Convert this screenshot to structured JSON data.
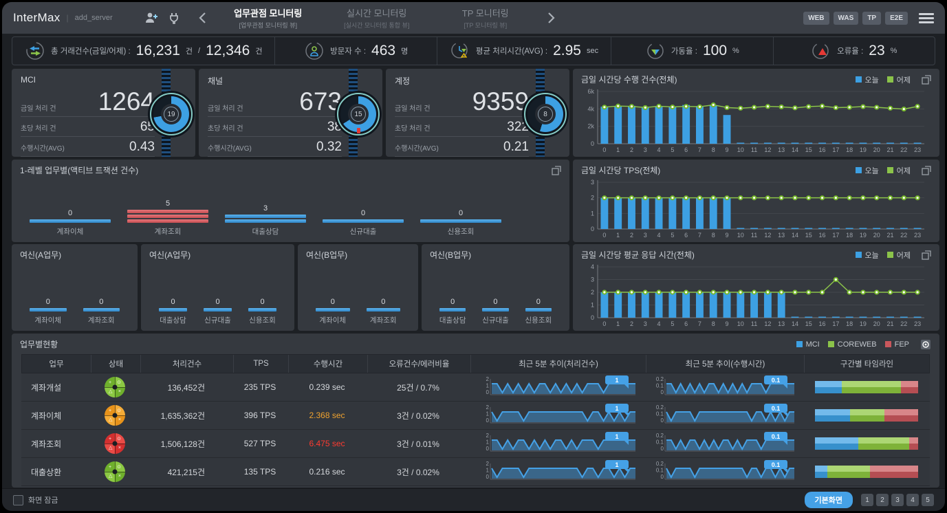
{
  "colors": {
    "accent_blue": "#3da0e3",
    "accent_green": "#8bc34a",
    "accent_red": "#c9575c",
    "accent_orange": "#f0a32f",
    "alert_red": "#ff3b30"
  },
  "header": {
    "logo": "InterMax",
    "divider": "|",
    "workspace": "add_server",
    "tabs": [
      {
        "label": "업무관점 모니터링",
        "sub": "[업무관점 모니터링 뷰]",
        "active": true
      },
      {
        "label": "실시간 모니터링",
        "sub": "[실시간 모니터링 통합 뷰]",
        "active": false
      },
      {
        "label": "TP 모니터링",
        "sub": "[TP 모니터링 뷰]",
        "active": false
      }
    ],
    "right_buttons": [
      "WEB",
      "WAS",
      "TP",
      "E2E"
    ]
  },
  "kpis": [
    {
      "icon": "transfer-arrows-icon",
      "label": "총 거래건수(금일/어제) :",
      "v1": "16,231",
      "u1": "건",
      "sep": "/",
      "v2": "12,346",
      "u2": "건"
    },
    {
      "icon": "visitor-icon",
      "label": "방문자 수 :",
      "v1": "463",
      "u1": "명"
    },
    {
      "icon": "avg-time-icon",
      "label": "평균 처리시간(AVG) :",
      "v1": "2.95",
      "u1": "sec"
    },
    {
      "icon": "uptime-icon",
      "label": "가동율 :",
      "v1": "100",
      "u1": "%"
    },
    {
      "icon": "error-rate-icon",
      "label": "오류율 :",
      "v1": "23",
      "u1": "%"
    }
  ],
  "gauges": [
    {
      "title": "MCI",
      "today_label": "금일 처리 건",
      "today": "1264",
      "persec_label": "초당 처리 건",
      "persec": "65",
      "avg_label": "수행시간(AVG)",
      "avg": "0.43",
      "gauge": "19",
      "gauge_pct": 72,
      "alert": false
    },
    {
      "title": "채널",
      "today_label": "금일 처리 건",
      "today": "673",
      "persec_label": "초당 처리 건",
      "persec": "38",
      "avg_label": "수행시간(AVG)",
      "avg": "0.32",
      "gauge": "15",
      "gauge_pct": 66,
      "alert": true
    },
    {
      "title": "계정",
      "today_label": "금일 처리 건",
      "today": "9359",
      "persec_label": "초당 처리 건",
      "persec": "322",
      "avg_label": "수행시간(AVG)",
      "avg": "0.21",
      "gauge": "8",
      "gauge_pct": 55,
      "alert": false
    }
  ],
  "charts": [
    {
      "type": "bar+line",
      "title": "금일 시간당 수행 건수(전체)",
      "legend": [
        "오늘",
        "어제"
      ],
      "x": [
        0,
        1,
        2,
        3,
        4,
        5,
        6,
        7,
        8,
        9,
        10,
        11,
        12,
        13,
        14,
        15,
        16,
        17,
        18,
        19,
        20,
        21,
        22,
        23
      ],
      "ymax": 6000,
      "yticks": [
        [
          0,
          "0"
        ],
        [
          2000,
          "2k"
        ],
        [
          4000,
          "4k"
        ],
        [
          6000,
          "6k"
        ]
      ],
      "today": [
        4250,
        4300,
        4350,
        4200,
        4320,
        4260,
        4450,
        4330,
        4420,
        3300,
        70,
        75,
        65,
        70,
        68,
        72,
        66,
        70,
        64,
        70,
        66,
        72,
        65,
        70
      ],
      "yesterday": [
        4200,
        4320,
        4280,
        4150,
        4300,
        4220,
        4280,
        4240,
        4460,
        4150,
        4080,
        4180,
        4280,
        4230,
        4120,
        4260,
        4320,
        4140,
        4180,
        4260,
        4180,
        4080,
        3980,
        4280
      ]
    },
    {
      "type": "bar+line",
      "title": "금일 시간당 TPS(전체)",
      "legend": [
        "오늘",
        "어제"
      ],
      "x": [
        0,
        1,
        2,
        3,
        4,
        5,
        6,
        7,
        8,
        9,
        10,
        11,
        12,
        13,
        14,
        15,
        16,
        17,
        18,
        19,
        20,
        21,
        22,
        23
      ],
      "ymax": 3,
      "yticks": [
        [
          0,
          "0"
        ],
        [
          1,
          "1"
        ],
        [
          2,
          "2"
        ],
        [
          3,
          "3"
        ]
      ],
      "today": [
        2,
        2,
        2,
        2,
        2,
        2,
        2,
        2,
        2,
        2,
        0.05,
        0.05,
        0.05,
        0.05,
        0.05,
        0.05,
        0.05,
        0.05,
        0.05,
        0.05,
        0.05,
        0.05,
        0.05,
        0.05
      ],
      "yesterday": [
        2,
        2,
        2,
        2,
        2,
        2,
        2,
        2,
        2,
        2,
        2,
        2,
        2,
        2,
        2,
        2,
        2,
        2,
        2,
        2,
        2,
        2,
        2,
        2
      ]
    },
    {
      "type": "bar+line",
      "title": "금일 시간당 평균 응답 시간(전체)",
      "legend": [
        "오늘",
        "어제"
      ],
      "x": [
        0,
        1,
        2,
        3,
        4,
        5,
        6,
        7,
        8,
        9,
        10,
        11,
        12,
        13,
        14,
        15,
        16,
        17,
        18,
        19,
        20,
        21,
        22,
        23
      ],
      "ymax": 4,
      "yticks": [
        [
          0,
          "0"
        ],
        [
          1,
          "1"
        ],
        [
          2,
          "2"
        ],
        [
          3,
          "3"
        ],
        [
          4,
          "4"
        ]
      ],
      "today": [
        2,
        2,
        2,
        2,
        2,
        2,
        2,
        2,
        2,
        2,
        2,
        2,
        2,
        2,
        0.07,
        0.07,
        0.07,
        0.07,
        0.07,
        0.07,
        0.07,
        0.07,
        0.07,
        0.07
      ],
      "yesterday": [
        2,
        2,
        2,
        2,
        2,
        2,
        2,
        2,
        2,
        2,
        2,
        2,
        2,
        2,
        2,
        2,
        2,
        3,
        2,
        2,
        2,
        2,
        2,
        2
      ]
    }
  ],
  "active_panel": {
    "title": "1-레벨 업무별(액티브 트잭션 건수)",
    "items": [
      {
        "label": "계좌이체",
        "value": "0",
        "levels": 1,
        "color": "blue"
      },
      {
        "label": "계좌조회",
        "value": "5",
        "levels": 3,
        "color": "red"
      },
      {
        "label": "대출상담",
        "value": "3",
        "levels": 2,
        "color": "blue"
      },
      {
        "label": "신규대출",
        "value": "0",
        "levels": 1,
        "color": "blue"
      },
      {
        "label": "신용조회",
        "value": "0",
        "levels": 1,
        "color": "blue"
      }
    ]
  },
  "mini_panels": [
    {
      "title": "여신(A업무)",
      "items": [
        {
          "label": "계좌이체",
          "value": "0"
        },
        {
          "label": "계좌조회",
          "value": "0"
        }
      ]
    },
    {
      "title": "여신(A업무)",
      "items": [
        {
          "label": "대출상담",
          "value": "0"
        },
        {
          "label": "신규대출",
          "value": "0"
        },
        {
          "label": "신용조회",
          "value": "0"
        }
      ]
    },
    {
      "title": "여신(B업무)",
      "items": [
        {
          "label": "계좌이체",
          "value": "0"
        },
        {
          "label": "계좌조회",
          "value": "0"
        }
      ]
    },
    {
      "title": "여신(B업무)",
      "items": [
        {
          "label": "대출상담",
          "value": "0"
        },
        {
          "label": "신규대출",
          "value": "0"
        },
        {
          "label": "신용조회",
          "value": "0"
        }
      ]
    }
  ],
  "table": {
    "title": "업무별현황",
    "legend": [
      {
        "label": "MCI",
        "color": "#3da0e3"
      },
      {
        "label": "COREWEB",
        "color": "#8bc34a"
      },
      {
        "label": "FEP",
        "color": "#c9575c"
      }
    ],
    "headers": [
      "업무",
      "상태",
      "처리건수",
      "TPS",
      "수행시간",
      "오류건수/에러비율",
      "최근 5분 추이(처리건수)",
      "최근 5분 추이(수행시간)",
      "구간별 타임라인"
    ],
    "spark1_yticks": [
      "2",
      "1",
      "0"
    ],
    "spark2_yticks": [
      "0.2",
      "0.1",
      "0"
    ],
    "rows": [
      {
        "name": "계좌개설",
        "status": "green",
        "count": "136,452건",
        "tps": "235 TPS",
        "time": "0.239 sec",
        "time_state": "normal",
        "errors": "25건 / 0.7%",
        "badge1": "1",
        "badge2": "0.1",
        "trend": [
          1,
          1,
          0,
          1,
          0,
          1,
          0,
          1,
          0,
          1,
          1,
          0,
          1,
          0,
          1,
          0,
          1,
          0,
          1,
          1,
          1,
          0,
          1,
          1,
          1,
          1,
          1,
          1
        ],
        "timeline": [
          26,
          57,
          17
        ]
      },
      {
        "name": "계좌이체",
        "status": "orange",
        "count": "1,635,362건",
        "tps": "396 TPS",
        "time": "2.368 sec",
        "time_state": "warning",
        "errors": "3건 / 0.02%",
        "badge1": "1",
        "badge2": "0.1",
        "trend": [
          1,
          0,
          1,
          1,
          1,
          1,
          0,
          1,
          1,
          1,
          1,
          1,
          1,
          1,
          1,
          1,
          1,
          1,
          0,
          1,
          1,
          0,
          1,
          0,
          1,
          0,
          1,
          1
        ],
        "timeline": [
          34,
          33,
          33
        ]
      },
      {
        "name": "계좌조회",
        "status": "red",
        "count": "1,506,128건",
        "tps": "527 TPS",
        "time": "6.475 sec",
        "time_state": "critical",
        "errors": "3건 / 0.01%",
        "badge1": "1",
        "badge2": "0.1",
        "trend": [
          1,
          1,
          0,
          1,
          0,
          1,
          1,
          0,
          1,
          0,
          1,
          0,
          1,
          1,
          0,
          1,
          0,
          1,
          1,
          1,
          0,
          1,
          1,
          1,
          1,
          1,
          1,
          1
        ],
        "timeline": [
          42,
          49,
          9
        ]
      },
      {
        "name": "대출상환",
        "status": "green",
        "count": "421,215건",
        "tps": "135 TPS",
        "time": "0.216 sec",
        "time_state": "normal",
        "errors": "3건 / 0.02%",
        "badge1": "1",
        "badge2": "0.1",
        "trend": [
          1,
          0,
          1,
          1,
          1,
          1,
          0,
          1,
          1,
          1,
          1,
          1,
          1,
          1,
          1,
          1,
          1,
          0,
          1,
          1,
          0,
          1,
          1,
          0,
          1,
          0,
          1,
          1
        ],
        "timeline": [
          12,
          41,
          47
        ]
      }
    ]
  },
  "footer": {
    "lock_label": "화면 잠금",
    "primary_button": "기본화면",
    "pages": [
      "1",
      "2",
      "3",
      "4",
      "5"
    ]
  }
}
